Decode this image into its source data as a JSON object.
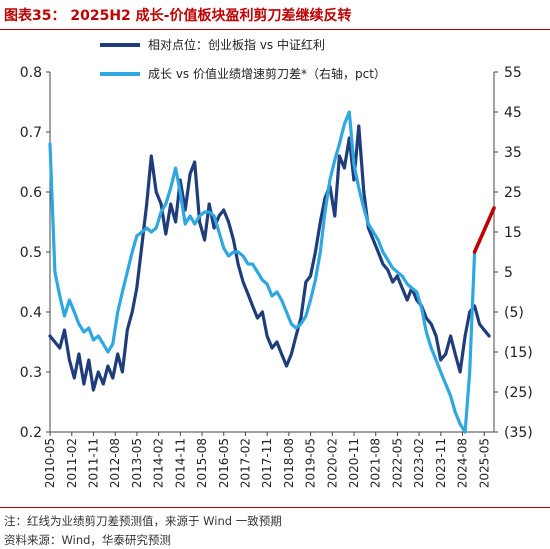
{
  "title": "图表35：  2025H2  成长-价值板块盈利剪刀差继续反转",
  "notes": {
    "line1": "注：红线为业绩剪刀差预测值，来源于 Wind 一致预期",
    "line2": "资料来源：Wind，华泰研究预测"
  },
  "colors": {
    "series1": "#1f3d7a",
    "series2": "#2fa7e0",
    "forecast": "#c00000",
    "accent": "#c00000"
  },
  "chart_data": {
    "type": "line",
    "title": "",
    "xlabel": "",
    "ylabel": "",
    "ylim": [
      0.2,
      0.8
    ],
    "y2lim": [
      -35,
      55
    ],
    "y_ticks": [
      "0.8",
      "0.7",
      "0.6",
      "0.5",
      "0.4",
      "0.3",
      "0.2"
    ],
    "y2_ticks": [
      "55",
      "45",
      "35",
      "25",
      "15",
      "5",
      "(5)",
      "(15)",
      "(25)",
      "(35)"
    ],
    "x_ticks": [
      "2010-05",
      "2011-02",
      "2011-11",
      "2012-08",
      "2013-05",
      "2014-02",
      "2014-11",
      "2015-08",
      "2016-05",
      "2017-02",
      "2017-11",
      "2018-08",
      "2019-05",
      "2020-02",
      "2020-11",
      "2021-08",
      "2022-05",
      "2023-02",
      "2023-11",
      "2024-08",
      "2025-05"
    ],
    "legend": {
      "position": "top",
      "entries": [
        "相对点位：创业板指 vs 中证红利",
        "成长 vs 价值业绩增速剪刀差*（右轴，pct）"
      ]
    },
    "series": [
      {
        "name": "相对点位：创业板指 vs 中证红利",
        "axis": "left",
        "x": [
          2010.33,
          2010.5,
          2010.67,
          2010.83,
          2011.0,
          2011.17,
          2011.33,
          2011.5,
          2011.67,
          2011.83,
          2012.0,
          2012.17,
          2012.33,
          2012.5,
          2012.67,
          2012.83,
          2013.0,
          2013.17,
          2013.33,
          2013.5,
          2013.67,
          2013.83,
          2014.0,
          2014.17,
          2014.33,
          2014.5,
          2014.67,
          2014.83,
          2015.0,
          2015.17,
          2015.33,
          2015.5,
          2015.67,
          2015.83,
          2016.0,
          2016.17,
          2016.33,
          2016.5,
          2016.67,
          2016.83,
          2017.0,
          2017.17,
          2017.33,
          2017.5,
          2017.67,
          2017.83,
          2018.0,
          2018.17,
          2018.33,
          2018.5,
          2018.67,
          2018.83,
          2019.0,
          2019.17,
          2019.33,
          2019.5,
          2019.67,
          2019.83,
          2020.0,
          2020.17,
          2020.33,
          2020.5,
          2020.67,
          2020.83,
          2021.0,
          2021.17,
          2021.33,
          2021.5,
          2021.67,
          2021.83,
          2022.0,
          2022.17,
          2022.33,
          2022.5,
          2022.67,
          2022.83,
          2023.0,
          2023.17,
          2023.33,
          2023.5,
          2023.67,
          2023.83,
          2024.0,
          2024.17,
          2024.33,
          2024.5,
          2024.67,
          2024.83,
          2025.0,
          2025.17,
          2025.33,
          2025.5
        ],
        "values": [
          0.36,
          0.35,
          0.34,
          0.37,
          0.32,
          0.29,
          0.33,
          0.28,
          0.32,
          0.27,
          0.3,
          0.28,
          0.31,
          0.29,
          0.33,
          0.3,
          0.37,
          0.4,
          0.44,
          0.51,
          0.58,
          0.66,
          0.6,
          0.58,
          0.53,
          0.58,
          0.55,
          0.62,
          0.57,
          0.63,
          0.65,
          0.55,
          0.52,
          0.58,
          0.54,
          0.56,
          0.57,
          0.55,
          0.52,
          0.48,
          0.45,
          0.43,
          0.41,
          0.39,
          0.4,
          0.36,
          0.34,
          0.35,
          0.33,
          0.31,
          0.33,
          0.36,
          0.39,
          0.45,
          0.46,
          0.5,
          0.55,
          0.59,
          0.61,
          0.56,
          0.66,
          0.64,
          0.69,
          0.62,
          0.71,
          0.6,
          0.54,
          0.52,
          0.5,
          0.48,
          0.47,
          0.45,
          0.46,
          0.44,
          0.42,
          0.44,
          0.42,
          0.41,
          0.39,
          0.38,
          0.36,
          0.32,
          0.33,
          0.36,
          0.33,
          0.3,
          0.36,
          0.4,
          0.41,
          0.38,
          0.37,
          0.36
        ]
      },
      {
        "name": "成长 vs 价值业绩增速剪刀差*（右轴，pct）",
        "axis": "right",
        "x": [
          2010.33,
          2010.5,
          2010.67,
          2010.83,
          2011.0,
          2011.17,
          2011.33,
          2011.5,
          2011.67,
          2011.83,
          2012.0,
          2012.17,
          2012.33,
          2012.5,
          2012.67,
          2012.83,
          2013.0,
          2013.17,
          2013.33,
          2013.5,
          2013.67,
          2013.83,
          2014.0,
          2014.17,
          2014.33,
          2014.5,
          2014.67,
          2014.83,
          2015.0,
          2015.17,
          2015.33,
          2015.5,
          2015.67,
          2015.83,
          2016.0,
          2016.17,
          2016.33,
          2016.5,
          2016.67,
          2016.83,
          2017.0,
          2017.17,
          2017.33,
          2017.5,
          2017.67,
          2017.83,
          2018.0,
          2018.17,
          2018.33,
          2018.5,
          2018.67,
          2018.83,
          2019.0,
          2019.17,
          2019.33,
          2019.5,
          2019.67,
          2019.83,
          2020.0,
          2020.17,
          2020.33,
          2020.5,
          2020.67,
          2020.83,
          2021.0,
          2021.17,
          2021.33,
          2021.5,
          2021.67,
          2021.83,
          2022.0,
          2022.17,
          2022.33,
          2022.5,
          2022.67,
          2022.83,
          2023.0,
          2023.17,
          2023.33,
          2023.5,
          2023.67,
          2023.83,
          2024.0,
          2024.17,
          2024.33,
          2024.5,
          2024.67,
          2024.83,
          2025.0
        ],
        "values": [
          37,
          5,
          -1,
          -6,
          -2,
          -5,
          -8,
          -10,
          -9,
          -12,
          -11,
          -13,
          -15,
          -13,
          -5,
          0,
          5,
          10,
          14,
          15,
          16,
          15,
          16,
          20,
          22,
          26,
          31,
          25,
          17,
          19,
          17,
          19,
          20,
          20,
          19,
          15,
          11,
          9,
          10,
          10,
          9,
          7,
          7,
          5,
          3,
          2,
          -1,
          0,
          -2,
          -5,
          -8,
          -9,
          -8,
          -6,
          -2,
          3,
          10,
          20,
          28,
          33,
          37,
          42,
          45,
          32,
          26,
          21,
          17,
          15,
          13,
          10,
          8,
          6,
          5,
          4,
          2,
          1,
          0,
          -4,
          -10,
          -14,
          -17,
          -20,
          -23,
          -26,
          -30,
          -33,
          -35,
          -20,
          10
        ]
      },
      {
        "name": "",
        "axis": "right",
        "forecast": true,
        "x": [
          2025.0,
          2025.67
        ],
        "values": [
          10,
          21
        ]
      }
    ]
  }
}
